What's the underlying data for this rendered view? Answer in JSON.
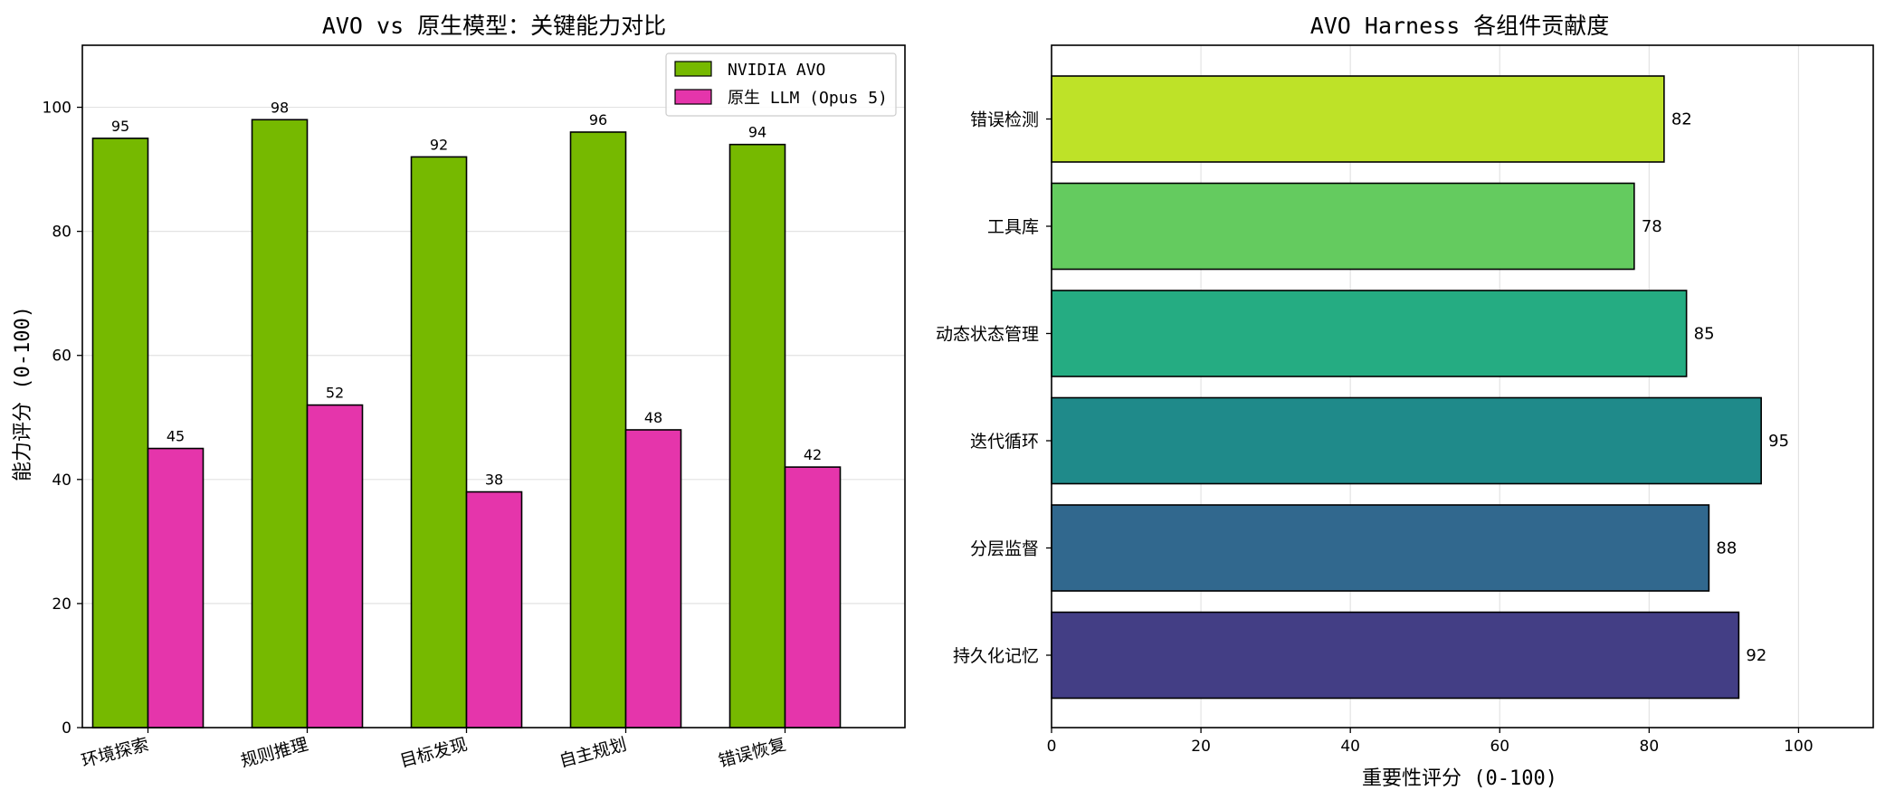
{
  "chart_data": [
    {
      "type": "bar",
      "title": "AVO vs 原生模型：关键能力对比",
      "xlabel": "",
      "ylabel": "能力评分 (0-100)",
      "categories": [
        "环境探索",
        "规则推理",
        "目标发现",
        "自主规划",
        "错误恢复"
      ],
      "series": [
        {
          "name": "NVIDIA AVO",
          "color": "#76b900",
          "values": [
            95,
            98,
            92,
            96,
            94
          ]
        },
        {
          "name": "原生 LLM (Opus 5)",
          "color": "#e535ab",
          "values": [
            45,
            52,
            38,
            48,
            42
          ]
        }
      ],
      "ylim": [
        0,
        110
      ],
      "yticks": [
        0,
        20,
        40,
        60,
        80,
        100
      ],
      "grid": true,
      "legend": "top-right"
    },
    {
      "type": "bar",
      "orientation": "horizontal",
      "title": "AVO Harness 各组件贡献度",
      "xlabel": "重要性评分 (0-100)",
      "ylabel": "",
      "categories": [
        "持久化记忆",
        "分层监督",
        "迭代循环",
        "动态状态管理",
        "工具库",
        "错误检测"
      ],
      "values": [
        92,
        88,
        95,
        85,
        78,
        82
      ],
      "colors": [
        "#433e85",
        "#31688e",
        "#1f8a8a",
        "#25ac82",
        "#64cb5f",
        "#bee228"
      ],
      "xlim": [
        0,
        110
      ],
      "xticks": [
        0,
        20,
        40,
        60,
        80,
        100
      ],
      "grid": true
    }
  ]
}
